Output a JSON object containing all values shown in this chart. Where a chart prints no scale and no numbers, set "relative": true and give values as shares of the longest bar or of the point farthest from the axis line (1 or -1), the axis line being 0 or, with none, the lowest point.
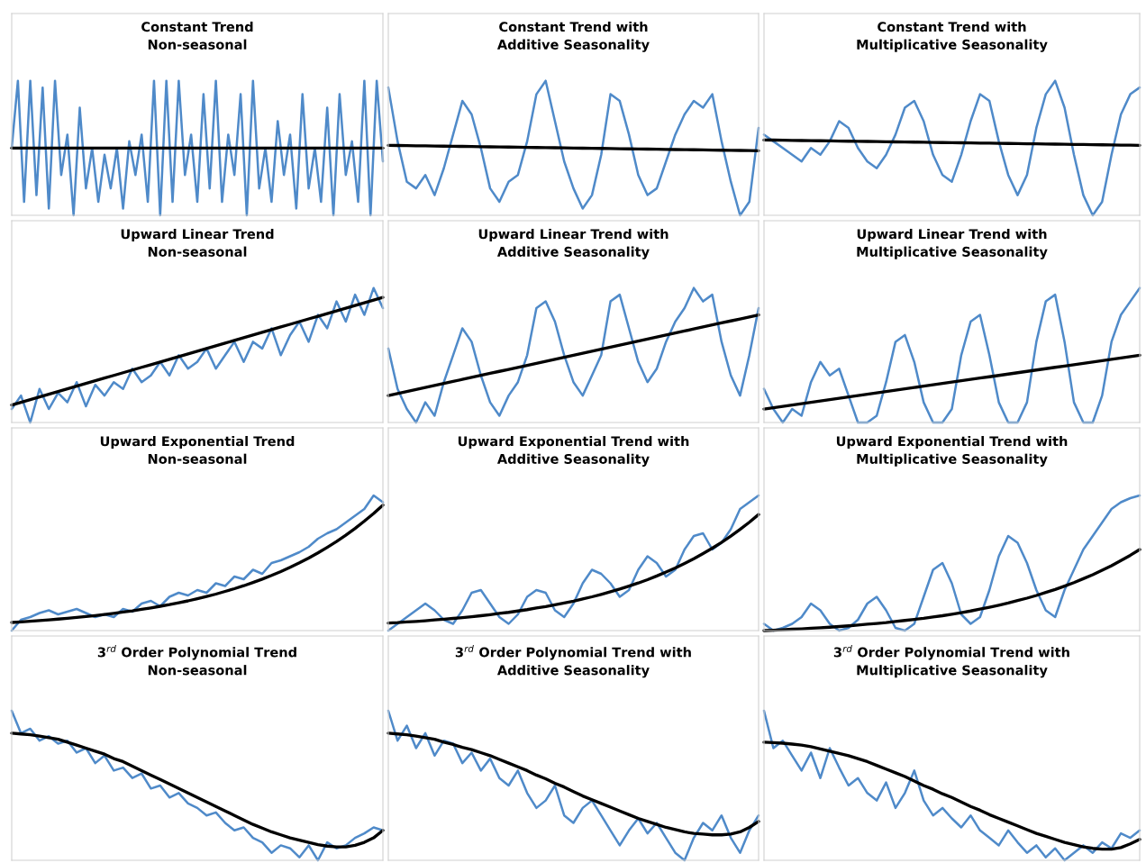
{
  "chart_data": [
    {
      "type": "line",
      "title": "Constant Trend\nNon-seasonal",
      "relative": true,
      "categories": [
        null,
        null,
        null,
        null,
        null,
        null,
        null,
        null,
        null,
        null,
        null,
        null,
        null,
        null,
        null,
        null,
        null,
        null,
        null,
        null,
        null,
        null,
        null,
        null,
        null,
        null,
        null,
        null,
        null,
        null,
        null,
        null,
        null,
        null,
        null,
        null,
        null,
        null,
        null,
        null,
        null,
        null,
        null,
        null,
        null,
        null,
        null,
        null,
        null,
        null,
        null,
        null,
        null,
        null,
        null,
        null,
        null,
        null,
        null,
        null,
        null
      ],
      "series": [
        {
          "color": "#4f8ac9",
          "values": [
            0.5,
            1,
            0.1,
            1,
            0.15,
            0.95,
            0.05,
            1,
            0.3,
            0.6,
            0.0,
            0.8,
            0.2,
            0.5,
            0.1,
            0.45,
            0.2,
            0.5,
            0.05,
            0.55,
            0.3,
            0.6,
            0.1,
            1,
            0.0,
            1,
            0.1,
            1,
            0.3,
            0.6,
            0.1,
            0.9,
            0.2,
            1,
            0.1,
            0.6,
            0.3,
            0.9,
            0.0,
            1,
            0.2,
            0.5,
            0.1,
            0.7,
            0.3,
            0.6,
            0.05,
            0.9,
            0.2,
            0.5,
            0.1,
            0.8,
            0.0,
            0.9,
            0.3,
            0.55,
            0.1,
            1,
            0.0,
            1,
            0.4
          ]
        },
        {
          "color": "#000000",
          "values": [
            0.5,
            0.5,
            0.5,
            0.5,
            0.5,
            0.5,
            0.5,
            0.5,
            0.5,
            0.5,
            0.5,
            0.5,
            0.5,
            0.5,
            0.5,
            0.5,
            0.5,
            0.5,
            0.5,
            0.5,
            0.5,
            0.5,
            0.5,
            0.5,
            0.5,
            0.5,
            0.5,
            0.5,
            0.5,
            0.5,
            0.5,
            0.5,
            0.5,
            0.5,
            0.5,
            0.5,
            0.5,
            0.5,
            0.5,
            0.5,
            0.5,
            0.5,
            0.5,
            0.5,
            0.5,
            0.5,
            0.5,
            0.5,
            0.5,
            0.5,
            0.5,
            0.5,
            0.5,
            0.5,
            0.5,
            0.5,
            0.5,
            0.5,
            0.5,
            0.5,
            0.5
          ]
        }
      ]
    },
    {
      "type": "line",
      "title": "Constant Trend with\nAdditive Seasonality",
      "relative": true,
      "categories": [
        null,
        null,
        null,
        null,
        null,
        null,
        null,
        null,
        null,
        null,
        null,
        null,
        null,
        null,
        null,
        null,
        null,
        null,
        null,
        null,
        null,
        null,
        null,
        null,
        null,
        null,
        null,
        null,
        null,
        null,
        null,
        null,
        null,
        null,
        null,
        null,
        null,
        null,
        null,
        null,
        null
      ],
      "series": [
        {
          "color": "#4f8ac9",
          "values": [
            0.95,
            0.55,
            0.25,
            0.2,
            0.3,
            0.15,
            0.35,
            0.6,
            0.85,
            0.75,
            0.5,
            0.2,
            0.1,
            0.25,
            0.3,
            0.55,
            0.9,
            1.0,
            0.7,
            0.4,
            0.2,
            0.05,
            0.15,
            0.45,
            0.9,
            0.85,
            0.6,
            0.3,
            0.15,
            0.2,
            0.4,
            0.6,
            0.75,
            0.85,
            0.8,
            0.9,
            0.55,
            0.25,
            0.0,
            0.1,
            0.65
          ]
        },
        {
          "color": "#000000",
          "values": [
            0.52,
            0.519,
            0.518,
            0.517,
            0.516,
            0.515,
            0.514,
            0.513,
            0.512,
            0.511,
            0.51,
            0.509,
            0.508,
            0.507,
            0.506,
            0.505,
            0.504,
            0.503,
            0.502,
            0.501,
            0.5,
            0.499,
            0.498,
            0.497,
            0.496,
            0.495,
            0.494,
            0.493,
            0.492,
            0.491,
            0.49,
            0.489,
            0.488,
            0.487,
            0.486,
            0.485,
            0.484,
            0.483,
            0.482,
            0.481,
            0.48
          ]
        }
      ]
    },
    {
      "type": "line",
      "title": "Constant Trend with\nMultiplicative Seasonality",
      "relative": true,
      "categories": [
        null,
        null,
        null,
        null,
        null,
        null,
        null,
        null,
        null,
        null,
        null,
        null,
        null,
        null,
        null,
        null,
        null,
        null,
        null,
        null,
        null,
        null,
        null,
        null,
        null,
        null,
        null,
        null,
        null,
        null,
        null,
        null,
        null,
        null,
        null,
        null,
        null,
        null,
        null,
        null,
        null
      ],
      "series": [
        {
          "color": "#4f8ac9",
          "values": [
            0.6,
            0.55,
            0.5,
            0.45,
            0.4,
            0.5,
            0.45,
            0.55,
            0.7,
            0.65,
            0.5,
            0.4,
            0.35,
            0.45,
            0.6,
            0.8,
            0.85,
            0.7,
            0.45,
            0.3,
            0.25,
            0.45,
            0.7,
            0.9,
            0.85,
            0.55,
            0.3,
            0.15,
            0.3,
            0.65,
            0.9,
            1.0,
            0.8,
            0.45,
            0.15,
            0.0,
            0.1,
            0.45,
            0.75,
            0.9,
            0.95
          ]
        },
        {
          "color": "#000000",
          "values": [
            0.56,
            0.559,
            0.558,
            0.557,
            0.556,
            0.555,
            0.554,
            0.553,
            0.552,
            0.551,
            0.55,
            0.549,
            0.548,
            0.547,
            0.546,
            0.545,
            0.544,
            0.543,
            0.542,
            0.541,
            0.54,
            0.539,
            0.538,
            0.537,
            0.536,
            0.535,
            0.534,
            0.533,
            0.532,
            0.531,
            0.53,
            0.529,
            0.528,
            0.527,
            0.526,
            0.525,
            0.524,
            0.523,
            0.522,
            0.521,
            0.52
          ]
        }
      ]
    },
    {
      "type": "line",
      "title": "Upward Linear Trend\nNon-seasonal",
      "relative": true,
      "categories": [
        null,
        null,
        null,
        null,
        null,
        null,
        null,
        null,
        null,
        null,
        null,
        null,
        null,
        null,
        null,
        null,
        null,
        null,
        null,
        null,
        null,
        null,
        null,
        null,
        null,
        null,
        null,
        null,
        null,
        null,
        null,
        null,
        null,
        null,
        null,
        null,
        null,
        null,
        null,
        null,
        null
      ],
      "series": [
        {
          "color": "#4f8ac9",
          "values": [
            0.1,
            0.2,
            0.0,
            0.25,
            0.1,
            0.22,
            0.15,
            0.3,
            0.12,
            0.28,
            0.2,
            0.3,
            0.25,
            0.4,
            0.3,
            0.35,
            0.45,
            0.35,
            0.5,
            0.4,
            0.45,
            0.55,
            0.4,
            0.5,
            0.6,
            0.45,
            0.6,
            0.55,
            0.7,
            0.5,
            0.65,
            0.75,
            0.6,
            0.8,
            0.7,
            0.9,
            0.75,
            0.95,
            0.8,
            1.0,
            0.85
          ]
        },
        {
          "color": "#000000",
          "values": [
            0.13,
            0.15,
            0.17,
            0.19,
            0.21,
            0.23,
            0.25,
            0.27,
            0.29,
            0.31,
            0.33,
            0.35,
            0.37,
            0.39,
            0.41,
            0.43,
            0.45,
            0.47,
            0.49,
            0.51,
            0.53,
            0.55,
            0.57,
            0.59,
            0.61,
            0.63,
            0.65,
            0.67,
            0.69,
            0.71,
            0.73,
            0.75,
            0.77,
            0.79,
            0.81,
            0.83,
            0.85,
            0.87,
            0.89,
            0.91,
            0.93
          ]
        }
      ]
    },
    {
      "type": "line",
      "title": "Upward Linear Trend with\nAdditive Seasonality",
      "relative": true,
      "categories": [
        null,
        null,
        null,
        null,
        null,
        null,
        null,
        null,
        null,
        null,
        null,
        null,
        null,
        null,
        null,
        null,
        null,
        null,
        null,
        null,
        null,
        null,
        null,
        null,
        null,
        null,
        null,
        null,
        null,
        null,
        null,
        null,
        null,
        null,
        null,
        null,
        null,
        null,
        null,
        null,
        null
      ],
      "series": [
        {
          "color": "#4f8ac9",
          "values": [
            0.55,
            0.25,
            0.1,
            0.0,
            0.15,
            0.05,
            0.3,
            0.5,
            0.7,
            0.6,
            0.35,
            0.15,
            0.05,
            0.2,
            0.3,
            0.5,
            0.85,
            0.9,
            0.75,
            0.5,
            0.3,
            0.2,
            0.35,
            0.5,
            0.9,
            0.95,
            0.7,
            0.45,
            0.3,
            0.4,
            0.6,
            0.75,
            0.85,
            1.0,
            0.9,
            0.95,
            0.6,
            0.35,
            0.2,
            0.5,
            0.85
          ]
        },
        {
          "color": "#000000",
          "values": [
            0.2,
            0.215,
            0.23,
            0.245,
            0.26,
            0.275,
            0.29,
            0.305,
            0.32,
            0.335,
            0.35,
            0.365,
            0.38,
            0.395,
            0.41,
            0.425,
            0.44,
            0.455,
            0.47,
            0.485,
            0.5,
            0.515,
            0.53,
            0.545,
            0.56,
            0.575,
            0.59,
            0.605,
            0.62,
            0.635,
            0.65,
            0.665,
            0.68,
            0.695,
            0.71,
            0.725,
            0.74,
            0.755,
            0.77,
            0.785,
            0.8
          ]
        }
      ]
    },
    {
      "type": "line",
      "title": "Upward Linear Trend with\nMultiplicative Seasonality",
      "relative": true,
      "categories": [
        null,
        null,
        null,
        null,
        null,
        null,
        null,
        null,
        null,
        null,
        null,
        null,
        null,
        null,
        null,
        null,
        null,
        null,
        null,
        null,
        null,
        null,
        null,
        null,
        null,
        null,
        null,
        null,
        null,
        null,
        null,
        null,
        null,
        null,
        null,
        null,
        null,
        null,
        null,
        null,
        null
      ],
      "series": [
        {
          "color": "#4f8ac9",
          "values": [
            0.25,
            0.1,
            0.0,
            0.1,
            0.05,
            0.3,
            0.45,
            0.35,
            0.4,
            0.2,
            0.0,
            0.0,
            0.05,
            0.3,
            0.6,
            0.65,
            0.45,
            0.15,
            0.0,
            0.0,
            0.1,
            0.5,
            0.75,
            0.8,
            0.5,
            0.15,
            0.0,
            0.0,
            0.15,
            0.6,
            0.9,
            0.95,
            0.6,
            0.15,
            0.0,
            0.0,
            0.2,
            0.6,
            0.8,
            0.9,
            1.0
          ]
        },
        {
          "color": "#000000",
          "values": [
            0.1,
            0.11,
            0.12,
            0.13,
            0.14,
            0.15,
            0.16,
            0.17,
            0.18,
            0.19,
            0.2,
            0.21,
            0.22,
            0.23,
            0.24,
            0.25,
            0.26,
            0.27,
            0.28,
            0.29,
            0.3,
            0.31,
            0.32,
            0.33,
            0.34,
            0.35,
            0.36,
            0.37,
            0.38,
            0.39,
            0.4,
            0.41,
            0.42,
            0.43,
            0.44,
            0.45,
            0.46,
            0.47,
            0.48,
            0.49,
            0.5
          ]
        }
      ]
    },
    {
      "type": "line",
      "title": "Upward Exponential Trend\nNon-seasonal",
      "relative": true,
      "categories": [
        null,
        null,
        null,
        null,
        null,
        null,
        null,
        null,
        null,
        null,
        null,
        null,
        null,
        null,
        null,
        null,
        null,
        null,
        null,
        null,
        null,
        null,
        null,
        null,
        null,
        null,
        null,
        null,
        null,
        null,
        null,
        null,
        null,
        null,
        null,
        null,
        null,
        null,
        null,
        null,
        null
      ],
      "series": [
        {
          "color": "#4f8ac9",
          "values": [
            0.0,
            0.08,
            0.1,
            0.13,
            0.15,
            0.12,
            0.14,
            0.16,
            0.13,
            0.1,
            0.12,
            0.1,
            0.16,
            0.14,
            0.2,
            0.22,
            0.18,
            0.25,
            0.28,
            0.26,
            0.3,
            0.28,
            0.35,
            0.33,
            0.4,
            0.38,
            0.45,
            0.42,
            0.5,
            0.52,
            0.55,
            0.58,
            0.62,
            0.68,
            0.72,
            0.75,
            0.8,
            0.85,
            0.9,
            1.0,
            0.95
          ]
        },
        {
          "color": "#000000",
          "values": [
            0.06,
            0.064,
            0.069,
            0.074,
            0.079,
            0.085,
            0.091,
            0.097,
            0.104,
            0.111,
            0.119,
            0.128,
            0.137,
            0.146,
            0.157,
            0.168,
            0.18,
            0.192,
            0.206,
            0.22,
            0.236,
            0.253,
            0.27,
            0.29,
            0.31,
            0.332,
            0.356,
            0.381,
            0.408,
            0.437,
            0.468,
            0.501,
            0.537,
            0.575,
            0.616,
            0.659,
            0.706,
            0.756,
            0.81,
            0.867,
            0.929
          ]
        }
      ]
    },
    {
      "type": "line",
      "title": "Upward Exponential Trend with\nAdditive Seasonality",
      "relative": true,
      "categories": [
        null,
        null,
        null,
        null,
        null,
        null,
        null,
        null,
        null,
        null,
        null,
        null,
        null,
        null,
        null,
        null,
        null,
        null,
        null,
        null,
        null,
        null,
        null,
        null,
        null,
        null,
        null,
        null,
        null,
        null,
        null,
        null,
        null,
        null,
        null,
        null,
        null,
        null,
        null,
        null,
        null
      ],
      "series": [
        {
          "color": "#4f8ac9",
          "values": [
            0.0,
            0.05,
            0.1,
            0.15,
            0.2,
            0.15,
            0.08,
            0.05,
            0.15,
            0.28,
            0.3,
            0.2,
            0.1,
            0.05,
            0.12,
            0.25,
            0.3,
            0.28,
            0.15,
            0.1,
            0.2,
            0.35,
            0.45,
            0.42,
            0.35,
            0.25,
            0.3,
            0.45,
            0.55,
            0.5,
            0.4,
            0.45,
            0.6,
            0.7,
            0.72,
            0.6,
            0.65,
            0.75,
            0.9,
            0.95,
            1.0
          ]
        },
        {
          "color": "#000000",
          "values": [
            0.056,
            0.059,
            0.064,
            0.068,
            0.073,
            0.079,
            0.084,
            0.09,
            0.096,
            0.103,
            0.11,
            0.118,
            0.127,
            0.135,
            0.145,
            0.155,
            0.167,
            0.178,
            0.191,
            0.204,
            0.218,
            0.234,
            0.25,
            0.268,
            0.287,
            0.307,
            0.329,
            0.352,
            0.377,
            0.404,
            0.433,
            0.463,
            0.497,
            0.532,
            0.57,
            0.61,
            0.653,
            0.699,
            0.749,
            0.802,
            0.859
          ]
        }
      ]
    },
    {
      "type": "line",
      "title": "Upward Exponential Trend with\nMultiplicative Seasonality",
      "relative": true,
      "categories": [
        null,
        null,
        null,
        null,
        null,
        null,
        null,
        null,
        null,
        null,
        null,
        null,
        null,
        null,
        null,
        null,
        null,
        null,
        null,
        null,
        null,
        null,
        null,
        null,
        null,
        null,
        null,
        null,
        null,
        null,
        null,
        null,
        null,
        null,
        null,
        null,
        null,
        null,
        null,
        null,
        null
      ],
      "series": [
        {
          "color": "#4f8ac9",
          "values": [
            0.05,
            0.0,
            0.02,
            0.05,
            0.1,
            0.2,
            0.15,
            0.05,
            0.0,
            0.02,
            0.08,
            0.2,
            0.25,
            0.15,
            0.02,
            0.0,
            0.05,
            0.25,
            0.45,
            0.5,
            0.35,
            0.12,
            0.05,
            0.1,
            0.3,
            0.55,
            0.7,
            0.65,
            0.5,
            0.3,
            0.15,
            0.1,
            0.3,
            0.45,
            0.6,
            0.7,
            0.8,
            0.9,
            0.95,
            0.98,
            1.0
          ]
        },
        {
          "color": "#000000",
          "values": [
            0.0,
            0.003,
            0.006,
            0.01,
            0.013,
            0.017,
            0.021,
            0.025,
            0.03,
            0.035,
            0.041,
            0.047,
            0.053,
            0.059,
            0.067,
            0.075,
            0.083,
            0.091,
            0.101,
            0.11,
            0.121,
            0.133,
            0.145,
            0.159,
            0.173,
            0.188,
            0.204,
            0.222,
            0.24,
            0.26,
            0.282,
            0.304,
            0.329,
            0.355,
            0.384,
            0.413,
            0.446,
            0.48,
            0.518,
            0.557,
            0.6
          ]
        }
      ]
    },
    {
      "type": "line",
      "title": "3$^{rd}$ Order Polynomial Trend\nNon-seasonal",
      "relative": true,
      "categories": [
        null,
        null,
        null,
        null,
        null,
        null,
        null,
        null,
        null,
        null,
        null,
        null,
        null,
        null,
        null,
        null,
        null,
        null,
        null,
        null,
        null,
        null,
        null,
        null,
        null,
        null,
        null,
        null,
        null,
        null,
        null,
        null,
        null,
        null,
        null,
        null,
        null,
        null,
        null,
        null,
        null
      ],
      "series": [
        {
          "color": "#4f8ac9",
          "values": [
            1.0,
            0.85,
            0.88,
            0.8,
            0.83,
            0.78,
            0.8,
            0.72,
            0.75,
            0.65,
            0.7,
            0.6,
            0.62,
            0.55,
            0.58,
            0.48,
            0.5,
            0.42,
            0.45,
            0.38,
            0.35,
            0.3,
            0.32,
            0.25,
            0.2,
            0.22,
            0.15,
            0.12,
            0.05,
            0.1,
            0.08,
            0.02,
            0.1,
            0.0,
            0.12,
            0.08,
            0.1,
            0.15,
            0.18,
            0.22,
            0.2
          ]
        },
        {
          "color": "#000000",
          "values": [
            0.85,
            0.845,
            0.84,
            0.83,
            0.82,
            0.81,
            0.79,
            0.77,
            0.75,
            0.73,
            0.71,
            0.68,
            0.66,
            0.63,
            0.6,
            0.57,
            0.54,
            0.51,
            0.48,
            0.45,
            0.42,
            0.39,
            0.36,
            0.33,
            0.3,
            0.27,
            0.24,
            0.215,
            0.19,
            0.17,
            0.15,
            0.135,
            0.12,
            0.105,
            0.095,
            0.09,
            0.09,
            0.1,
            0.12,
            0.15,
            0.2
          ]
        }
      ]
    },
    {
      "type": "line",
      "title": "3$^{rd}$ Order Polynomial Trend with\nAdditive Seasonality",
      "relative": true,
      "categories": [
        null,
        null,
        null,
        null,
        null,
        null,
        null,
        null,
        null,
        null,
        null,
        null,
        null,
        null,
        null,
        null,
        null,
        null,
        null,
        null,
        null,
        null,
        null,
        null,
        null,
        null,
        null,
        null,
        null,
        null,
        null,
        null,
        null,
        null,
        null,
        null,
        null,
        null,
        null,
        null,
        null
      ],
      "series": [
        {
          "color": "#4f8ac9",
          "values": [
            1.0,
            0.8,
            0.9,
            0.75,
            0.85,
            0.7,
            0.8,
            0.78,
            0.65,
            0.72,
            0.6,
            0.68,
            0.55,
            0.5,
            0.6,
            0.45,
            0.35,
            0.4,
            0.5,
            0.3,
            0.25,
            0.35,
            0.4,
            0.3,
            0.2,
            0.1,
            0.2,
            0.28,
            0.18,
            0.25,
            0.15,
            0.05,
            0.0,
            0.15,
            0.25,
            0.2,
            0.3,
            0.15,
            0.05,
            0.2,
            0.3
          ]
        },
        {
          "color": "#000000",
          "values": [
            0.85,
            0.845,
            0.84,
            0.83,
            0.82,
            0.81,
            0.79,
            0.775,
            0.755,
            0.74,
            0.72,
            0.7,
            0.675,
            0.65,
            0.625,
            0.6,
            0.57,
            0.545,
            0.515,
            0.49,
            0.46,
            0.43,
            0.405,
            0.38,
            0.355,
            0.33,
            0.305,
            0.28,
            0.26,
            0.24,
            0.22,
            0.205,
            0.19,
            0.18,
            0.175,
            0.17,
            0.17,
            0.175,
            0.19,
            0.22,
            0.26
          ]
        }
      ]
    },
    {
      "type": "line",
      "title": "3$^{rd}$ Order Polynomial Trend with\nMultiplicative Seasonality",
      "relative": true,
      "categories": [
        null,
        null,
        null,
        null,
        null,
        null,
        null,
        null,
        null,
        null,
        null,
        null,
        null,
        null,
        null,
        null,
        null,
        null,
        null,
        null,
        null,
        null,
        null,
        null,
        null,
        null,
        null,
        null,
        null,
        null,
        null,
        null,
        null,
        null,
        null,
        null,
        null,
        null,
        null,
        null,
        null
      ],
      "series": [
        {
          "color": "#4f8ac9",
          "values": [
            1.0,
            0.75,
            0.8,
            0.7,
            0.6,
            0.72,
            0.55,
            0.75,
            0.62,
            0.5,
            0.55,
            0.45,
            0.4,
            0.52,
            0.35,
            0.45,
            0.6,
            0.4,
            0.3,
            0.35,
            0.28,
            0.22,
            0.3,
            0.2,
            0.15,
            0.1,
            0.2,
            0.12,
            0.05,
            0.1,
            0.02,
            0.08,
            0.0,
            0.05,
            0.1,
            0.05,
            0.12,
            0.08,
            0.18,
            0.15,
            0.2
          ]
        },
        {
          "color": "#000000",
          "values": [
            0.79,
            0.787,
            0.783,
            0.777,
            0.77,
            0.76,
            0.745,
            0.73,
            0.715,
            0.7,
            0.68,
            0.66,
            0.635,
            0.61,
            0.585,
            0.56,
            0.53,
            0.5,
            0.475,
            0.445,
            0.42,
            0.39,
            0.36,
            0.335,
            0.305,
            0.28,
            0.255,
            0.23,
            0.205,
            0.18,
            0.16,
            0.14,
            0.12,
            0.105,
            0.09,
            0.08,
            0.075,
            0.075,
            0.085,
            0.11,
            0.14
          ]
        }
      ]
    }
  ]
}
